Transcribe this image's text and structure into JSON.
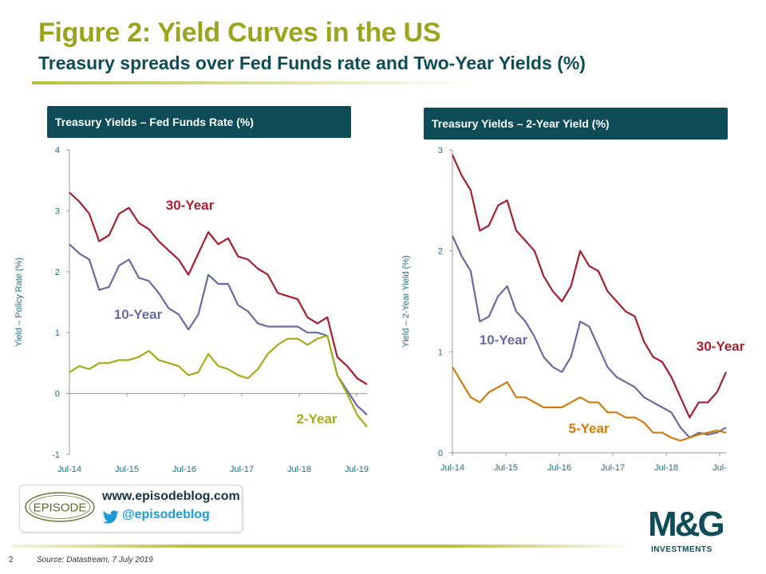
{
  "slide": {
    "title": "Figure 2: Yield Curves in the US",
    "subtitle": "Treasury spreads over Fed Funds rate and Two-Year Yields (%)",
    "page_number": "2",
    "source": "Source: Datastream, 7 July 2019",
    "blog_url": "www.episodeblog.com",
    "twitter_handle": "@episodeblog",
    "episode_logo_text": "EPISODE",
    "brand_logo_text": "M&G",
    "brand_logo_subtext": "INVESTMENTS",
    "colors": {
      "title": "#9aa51c",
      "subtitle": "#0e4d57",
      "header_bg": "#0e4d57",
      "axis_label": "#1f6e78",
      "twitter": "#1d9bd6"
    }
  },
  "chart_data": [
    {
      "type": "line",
      "title": "Treasury Yields – Fed Funds Rate (%)",
      "ylabel": "Yield – Policy Rate (%)",
      "xlabel": "",
      "x_tick_labels": [
        "Jul-14",
        "Jul-15",
        "Jul-16",
        "Jul-17",
        "Jul-18",
        "Jul-19"
      ],
      "ylim": [
        -1,
        4
      ],
      "y_ticks": [
        -1,
        0,
        1,
        2,
        3,
        4
      ],
      "grid": false,
      "x": [
        "2014-07",
        "2014-09",
        "2014-11",
        "2015-01",
        "2015-03",
        "2015-05",
        "2015-07",
        "2015-09",
        "2015-11",
        "2016-01",
        "2016-03",
        "2016-05",
        "2016-07",
        "2016-09",
        "2016-11",
        "2017-01",
        "2017-03",
        "2017-05",
        "2017-07",
        "2017-09",
        "2017-11",
        "2018-01",
        "2018-03",
        "2018-05",
        "2018-07",
        "2018-09",
        "2018-11",
        "2019-01",
        "2019-03",
        "2019-05",
        "2019-07"
      ],
      "series": [
        {
          "name": "30-Year",
          "color": "#a61e2d",
          "label_position": "upper-middle",
          "values": [
            3.3,
            3.15,
            2.95,
            2.5,
            2.6,
            2.95,
            3.05,
            2.8,
            2.7,
            2.5,
            2.35,
            2.2,
            1.95,
            2.3,
            2.65,
            2.45,
            2.55,
            2.25,
            2.2,
            2.05,
            1.95,
            1.65,
            1.6,
            1.55,
            1.25,
            1.15,
            1.25,
            0.6,
            0.45,
            0.25,
            0.15
          ]
        },
        {
          "name": "10-Year",
          "color": "#6a6aa0",
          "label_position": "middle-left",
          "values": [
            2.45,
            2.3,
            2.2,
            1.7,
            1.75,
            2.1,
            2.2,
            1.9,
            1.85,
            1.65,
            1.4,
            1.3,
            1.05,
            1.3,
            1.95,
            1.8,
            1.8,
            1.45,
            1.35,
            1.15,
            1.1,
            1.1,
            1.1,
            1.1,
            1.0,
            1.0,
            0.95,
            0.3,
            0.05,
            -0.2,
            -0.35
          ]
        },
        {
          "name": "2-Year",
          "color": "#a3ab18",
          "label_position": "lower-right",
          "values": [
            0.35,
            0.45,
            0.4,
            0.5,
            0.5,
            0.55,
            0.55,
            0.6,
            0.7,
            0.55,
            0.5,
            0.45,
            0.3,
            0.35,
            0.65,
            0.45,
            0.4,
            0.3,
            0.25,
            0.4,
            0.65,
            0.8,
            0.9,
            0.9,
            0.8,
            0.9,
            0.95,
            0.3,
            0.0,
            -0.35,
            -0.55
          ]
        }
      ]
    },
    {
      "type": "line",
      "title": "Treasury Yields – 2-Year Yield (%)",
      "ylabel": "Yield – 2-Year Yield (%)",
      "xlabel": "",
      "x_tick_labels": [
        "Jul-14",
        "Jul-15",
        "Jul-16",
        "Jul-17",
        "Jul-18",
        "Jul-"
      ],
      "ylim": [
        0,
        3
      ],
      "y_ticks": [
        0,
        1,
        2,
        3
      ],
      "grid": false,
      "x": [
        "2014-07",
        "2014-09",
        "2014-11",
        "2015-01",
        "2015-03",
        "2015-05",
        "2015-07",
        "2015-09",
        "2015-11",
        "2016-01",
        "2016-03",
        "2016-05",
        "2016-07",
        "2016-09",
        "2016-11",
        "2017-01",
        "2017-03",
        "2017-05",
        "2017-07",
        "2017-09",
        "2017-11",
        "2018-01",
        "2018-03",
        "2018-05",
        "2018-07",
        "2018-09",
        "2018-11",
        "2019-01",
        "2019-03",
        "2019-05",
        "2019-07"
      ],
      "series": [
        {
          "name": "30-Year",
          "color": "#a61e2d",
          "label_position": "right",
          "values": [
            2.95,
            2.75,
            2.6,
            2.2,
            2.25,
            2.45,
            2.5,
            2.2,
            2.1,
            2.0,
            1.75,
            1.6,
            1.5,
            1.65,
            2.0,
            1.85,
            1.8,
            1.6,
            1.5,
            1.4,
            1.35,
            1.1,
            0.95,
            0.9,
            0.75,
            0.55,
            0.35,
            0.5,
            0.5,
            0.6,
            0.8
          ]
        },
        {
          "name": "10-Year",
          "color": "#6a6aa0",
          "label_position": "middle-left",
          "values": [
            2.15,
            1.95,
            1.8,
            1.3,
            1.35,
            1.55,
            1.65,
            1.4,
            1.3,
            1.15,
            0.95,
            0.85,
            0.8,
            0.95,
            1.3,
            1.25,
            1.05,
            0.85,
            0.75,
            0.7,
            0.65,
            0.55,
            0.5,
            0.45,
            0.4,
            0.25,
            0.15,
            0.2,
            0.18,
            0.2,
            0.25
          ]
        },
        {
          "name": "5-Year",
          "color": "#d07b0e",
          "label_position": "lower-middle",
          "values": [
            0.85,
            0.7,
            0.55,
            0.5,
            0.6,
            0.65,
            0.7,
            0.55,
            0.55,
            0.5,
            0.45,
            0.45,
            0.45,
            0.5,
            0.55,
            0.5,
            0.5,
            0.4,
            0.4,
            0.35,
            0.35,
            0.3,
            0.2,
            0.2,
            0.15,
            0.12,
            0.15,
            0.18,
            0.2,
            0.22,
            0.2
          ]
        }
      ]
    }
  ]
}
